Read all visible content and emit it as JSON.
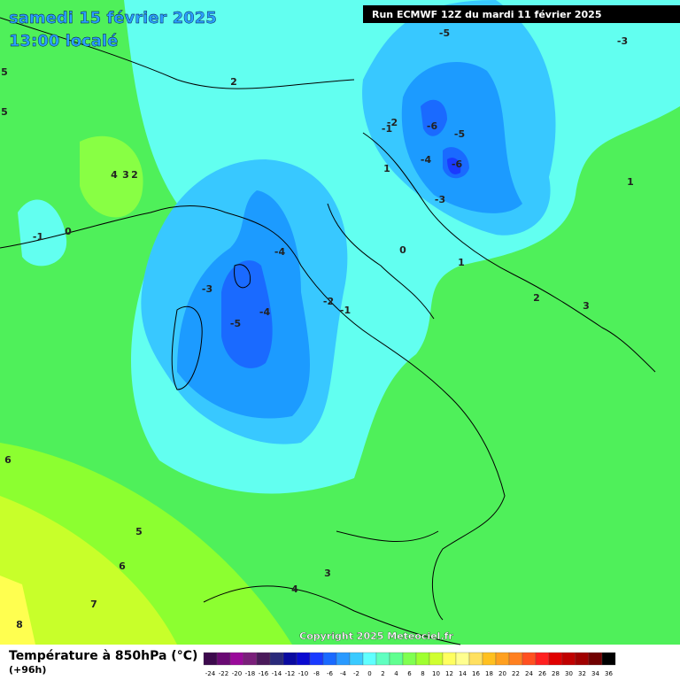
{
  "header": {
    "date": "samedi 15 février 2025",
    "time": "13:00 localé"
  },
  "run": "Run ECMWF 12Z du mardi 11 février 2025",
  "copyright": "Copyright 2025 Meteociel.fr",
  "contour_labels": [
    "-5",
    "-3",
    "2",
    "-2",
    "-1",
    "-6",
    "-5",
    "-4",
    "-6",
    "1",
    "4",
    "3",
    "2",
    "-3",
    "1",
    "-1",
    "0",
    "0",
    "1",
    "-4",
    "-3",
    "-2",
    "-1",
    "2",
    "3",
    "-4",
    "-5",
    "5",
    "5",
    "6",
    "5",
    "6",
    "3",
    "4",
    "7",
    "8"
  ],
  "legend": {
    "title": "Température à 850hPa (°C)",
    "lead": "(+96h)",
    "ticks": [
      -24,
      -22,
      -20,
      -18,
      -16,
      -14,
      -12,
      -10,
      -8,
      -6,
      -4,
      -2,
      0,
      2,
      4,
      6,
      8,
      10,
      12,
      14,
      16,
      18,
      20,
      22,
      24,
      26,
      28,
      30,
      32,
      34,
      36
    ],
    "colors": [
      "#3d0a4d",
      "#6a0a73",
      "#9a0a9a",
      "#7a1f7a",
      "#4a1a5a",
      "#2a2a7a",
      "#0a0aa0",
      "#0a0ad0",
      "#1a3aff",
      "#1a6aff",
      "#2a9aff",
      "#3acaff",
      "#60ffff",
      "#60ffc0",
      "#60ff90",
      "#80ff50",
      "#a0ff30",
      "#d0ff30",
      "#ffff60",
      "#ffff90",
      "#ffe060",
      "#ffc020",
      "#ffa020",
      "#ff8020",
      "#ff5020",
      "#ff2020",
      "#e00000",
      "#c00000",
      "#a00000",
      "#700000",
      "#000000"
    ]
  }
}
